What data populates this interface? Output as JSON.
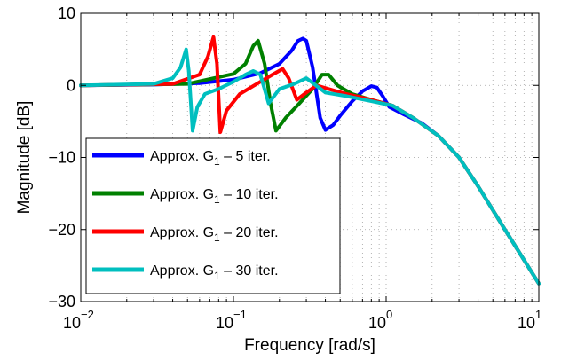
{
  "chart_data": {
    "type": "line",
    "title": "",
    "xlabel": "Frequency [rad/s]",
    "ylabel": "Magnitude [dB]",
    "xscale": "log",
    "xlim": [
      0.01,
      10
    ],
    "ylim": [
      -30,
      10
    ],
    "grid": true,
    "legend_position": "bottom-left",
    "x_ticks": [
      {
        "base": "10",
        "exp": "−2"
      },
      {
        "base": "10",
        "exp": "−1"
      },
      {
        "base": "10",
        "exp": "0"
      },
      {
        "base": "10",
        "exp": "1"
      }
    ],
    "y_ticks": [
      "10",
      "0",
      "−10",
      "−20",
      "−30"
    ],
    "series": [
      {
        "name_main": "Approx. G",
        "name_sub": "1",
        "name_rest": " – 5 iter.",
        "color": "#0000ff",
        "x": [
          0.01,
          0.03,
          0.06,
          0.1,
          0.15,
          0.2,
          0.24,
          0.265,
          0.285,
          0.3,
          0.33,
          0.37,
          0.4,
          0.45,
          0.5,
          0.6,
          0.7,
          0.8,
          0.87,
          0.95,
          1.05,
          1.3,
          1.7,
          2.2,
          3,
          4,
          6,
          10
        ],
        "y": [
          0,
          0.1,
          0.3,
          0.8,
          1.7,
          3,
          4.8,
          6.2,
          6.5,
          6.2,
          2.5,
          -4.5,
          -6.2,
          -5.5,
          -4.2,
          -2.2,
          -0.8,
          -0.1,
          -0.3,
          -1.5,
          -3,
          -4,
          -5.2,
          -7,
          -10,
          -14,
          -20,
          -27.5
        ]
      },
      {
        "name_main": "Approx. G",
        "name_sub": "1",
        "name_rest": " – 10 iter.",
        "color": "#008000",
        "x": [
          0.01,
          0.05,
          0.1,
          0.12,
          0.135,
          0.145,
          0.16,
          0.175,
          0.19,
          0.22,
          0.27,
          0.33,
          0.38,
          0.42,
          0.48,
          0.6,
          0.8,
          1.1,
          1.5,
          2.2,
          3,
          4,
          6,
          10
        ],
        "y": [
          0,
          0.2,
          1.6,
          3,
          5.5,
          6.2,
          3,
          -2.5,
          -6.3,
          -4.5,
          -2.5,
          -0.5,
          1.5,
          1.5,
          0,
          -1.2,
          -2,
          -2.8,
          -4.5,
          -7,
          -10,
          -14,
          -20,
          -27.5
        ]
      },
      {
        "name_main": "Approx. G",
        "name_sub": "1",
        "name_rest": " – 20 iter.",
        "color": "#ff0000",
        "x": [
          0.01,
          0.04,
          0.06,
          0.068,
          0.074,
          0.078,
          0.082,
          0.09,
          0.11,
          0.15,
          0.18,
          0.21,
          0.23,
          0.26,
          0.3,
          0.35,
          0.42,
          0.55,
          0.8,
          1.1,
          1.5,
          2.2,
          3,
          4,
          6,
          10
        ],
        "y": [
          0,
          0.2,
          1.5,
          4,
          6.7,
          3,
          -6.5,
          -3.5,
          -1.2,
          0.5,
          1.5,
          2.3,
          1,
          -2,
          -1,
          0,
          -0.5,
          -1.2,
          -2,
          -2.8,
          -4.5,
          -7,
          -10,
          -14,
          -20,
          -27.5
        ]
      },
      {
        "name_main": "Approx. G",
        "name_sub": "1",
        "name_rest": " – 30 iter.",
        "color": "#00bfbf",
        "x": [
          0.01,
          0.03,
          0.04,
          0.045,
          0.049,
          0.051,
          0.054,
          0.058,
          0.065,
          0.08,
          0.1,
          0.12,
          0.135,
          0.15,
          0.17,
          0.2,
          0.25,
          0.3,
          0.4,
          0.55,
          0.8,
          1.1,
          1.5,
          2.2,
          3,
          4,
          6,
          10
        ],
        "y": [
          0,
          0.2,
          1,
          2.5,
          5,
          2,
          -6.3,
          -3,
          -1.2,
          -0.5,
          0.5,
          1.5,
          2,
          1.5,
          -2.5,
          -0.5,
          0.2,
          1,
          -1,
          -1.5,
          -2.2,
          -2.8,
          -4.5,
          -7,
          -10,
          -14,
          -20,
          -27.5
        ]
      }
    ]
  }
}
